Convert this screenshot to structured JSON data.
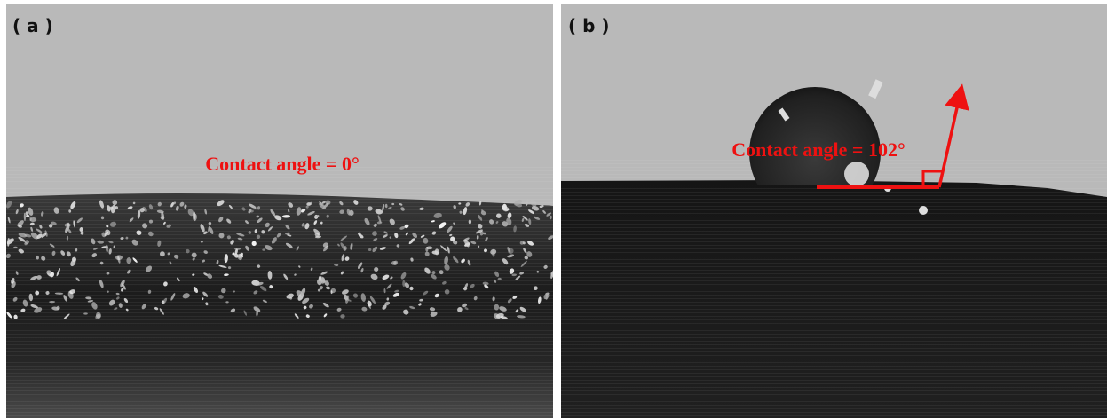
{
  "panels": [
    {
      "label": "( a )",
      "annotation": "Contact angle = 0°"
    },
    {
      "label": "( b )",
      "annotation": "Contact angle = 102°"
    }
  ]
}
